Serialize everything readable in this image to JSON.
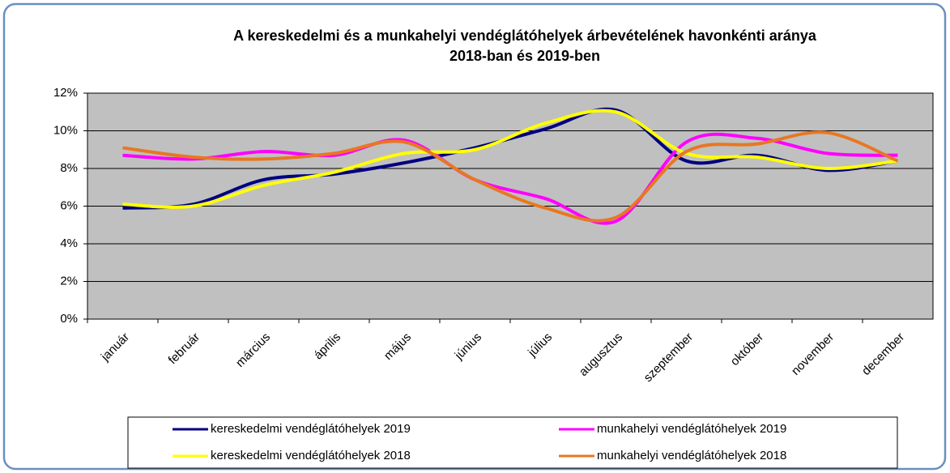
{
  "chart_data": {
    "type": "line",
    "title": [
      "A kereskedelmi és a munkahelyi vendéglátóhelyek árbevételének havonkénti aránya",
      "2018-ban és 2019-ben"
    ],
    "categories": [
      "január",
      "február",
      "március",
      "április",
      "május",
      "június",
      "július",
      "augusztus",
      "szeptember",
      "október",
      "november",
      "december"
    ],
    "series": [
      {
        "name": "kereskedelmi vendéglátóhelyek 2019",
        "color": "#000080",
        "values": [
          5.9,
          6.1,
          7.4,
          7.7,
          8.3,
          9.1,
          10.1,
          11.1,
          8.4,
          8.7,
          7.9,
          8.4
        ]
      },
      {
        "name": "munkahelyi vendéglátóhelyek 2019",
        "color": "#ff00ff",
        "values": [
          8.7,
          8.5,
          8.9,
          8.7,
          9.5,
          7.4,
          6.4,
          5.2,
          9.4,
          9.6,
          8.8,
          8.7
        ]
      },
      {
        "name": "kereskedelmi vendéglátóhelyek 2018",
        "color": "#ffff00",
        "values": [
          6.1,
          6.0,
          7.1,
          7.8,
          8.8,
          9.0,
          10.4,
          11.0,
          8.8,
          8.6,
          8.0,
          8.4
        ]
      },
      {
        "name": "munkahelyi vendéglátóhelyek 2018",
        "color": "#e87722",
        "values": [
          9.1,
          8.6,
          8.5,
          8.8,
          9.4,
          7.4,
          5.9,
          5.4,
          8.9,
          9.3,
          9.9,
          8.4
        ]
      }
    ],
    "ylim": [
      0,
      12
    ],
    "yticks": [
      {
        "value": 0,
        "label": "0%"
      },
      {
        "value": 2,
        "label": "2%"
      },
      {
        "value": 4,
        "label": "4%"
      },
      {
        "value": 6,
        "label": "6%"
      },
      {
        "value": 8,
        "label": "8%"
      },
      {
        "value": 10,
        "label": "10%"
      },
      {
        "value": 12,
        "label": "12%"
      }
    ],
    "grid": true,
    "legend": "bottom",
    "smooth": true,
    "plot_background": "#c0c0c0"
  }
}
